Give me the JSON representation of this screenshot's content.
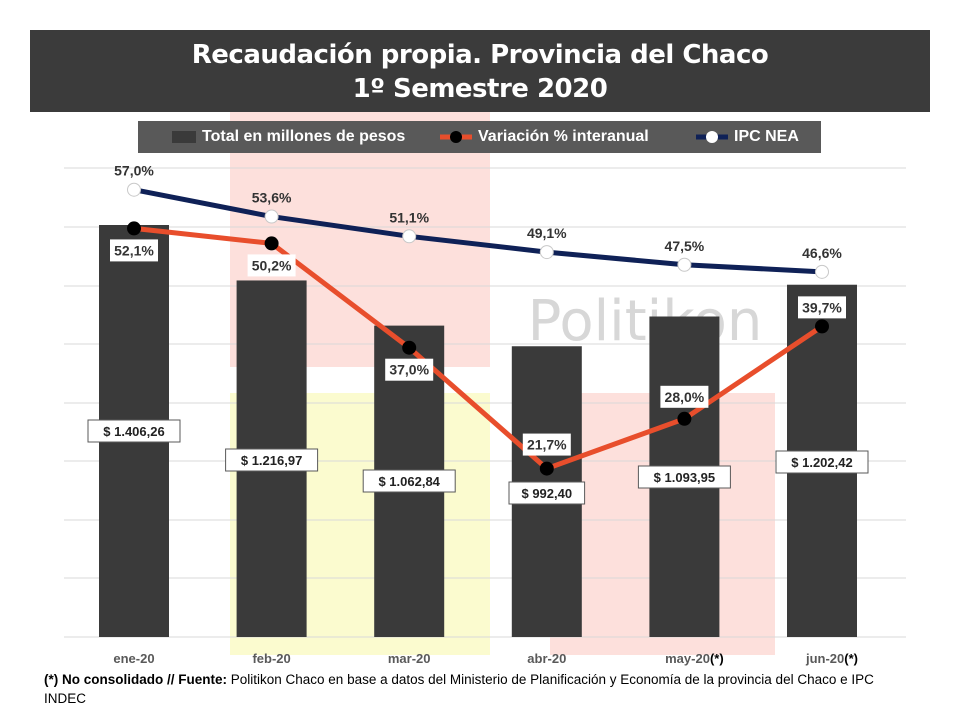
{
  "title": {
    "line1": "Recaudación propia. Provincia del Chaco",
    "line2": "1º Semestre 2020"
  },
  "legend": {
    "bars_label": "Total en millones de pesos",
    "variation_label": "Variación % interanual",
    "ipc_label": "IPC NEA"
  },
  "watermark": "Politikon",
  "colors": {
    "title_bg": "#3b3b3b",
    "bar": "#3a3a3a",
    "variation_line": "#e84e2c",
    "ipc_line": "#0f2157",
    "legend_bg": "#595959"
  },
  "chart_data": {
    "type": "bar+line",
    "categories": [
      "ene-20",
      "feb-20",
      "mar-20",
      "abr-20",
      "may-20",
      "jun-20"
    ],
    "category_notes": [
      "",
      "",
      "",
      "",
      "(*)",
      "(*)"
    ],
    "bars": {
      "name": "Total en millones de pesos",
      "values": [
        1406.26,
        1216.97,
        1062.84,
        992.4,
        1093.95,
        1202.42
      ],
      "labels": [
        "$ 1.406,26",
        "$ 1.216,97",
        "$ 1.062,84",
        "$ 992,40",
        "$ 1.093,95",
        "$ 1.202,42"
      ]
    },
    "series": [
      {
        "name": "Variación % interanual",
        "values": [
          52.1,
          50.2,
          37.0,
          21.7,
          28.0,
          39.7
        ],
        "labels": [
          "52,1%",
          "50,2%",
          "37,0%",
          "21,7%",
          "28,0%",
          "39,7%"
        ]
      },
      {
        "name": "IPC NEA",
        "values": [
          57.0,
          53.6,
          51.1,
          49.1,
          47.5,
          46.6
        ],
        "labels": [
          "57,0%",
          "53,6%",
          "51,1%",
          "49,1%",
          "47,5%",
          "46,6%"
        ]
      }
    ],
    "bar_axis_range": [
      0,
      1400
    ],
    "percent_axis_range": [
      0,
      63
    ],
    "grid": true,
    "legend_position": "top"
  },
  "footnote": {
    "bold_part": "(*) No consolidado // Fuente:",
    "text": " Politikon Chaco en base a datos del Ministerio de Planificación y Economía de la provincia del Chaco e IPC INDEC"
  }
}
